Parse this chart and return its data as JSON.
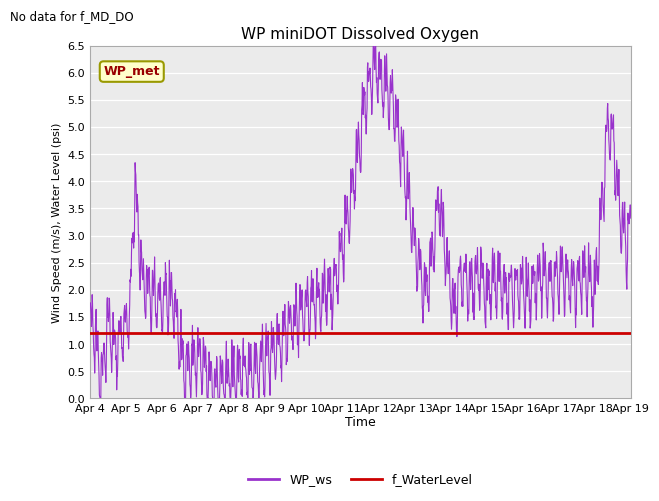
{
  "title": "WP miniDOT Dissolved Oxygen",
  "top_left_text": "No data for f_MD_DO",
  "xlabel": "Time",
  "ylabel": "Wind Speed (m/s), Water Level (psi)",
  "ylim": [
    0.0,
    6.5
  ],
  "yticks": [
    0.0,
    0.5,
    1.0,
    1.5,
    2.0,
    2.5,
    3.0,
    3.5,
    4.0,
    4.5,
    5.0,
    5.5,
    6.0,
    6.5
  ],
  "water_level_value": 1.2,
  "water_level_color": "#cc0000",
  "wp_ws_color": "#9933cc",
  "background_color": "#ffffff",
  "plot_bg_color": "#ebebeb",
  "inset_label": "WP_met",
  "inset_label_bg": "#ffffcc",
  "inset_label_border": "#999900",
  "legend_ws_label": "WP_ws",
  "legend_wl_label": "f_WaterLevel",
  "x_tick_labels": [
    "Apr 4",
    "Apr 5",
    "Apr 6",
    "Apr 7",
    "Apr 8",
    "Apr 9",
    "Apr 10",
    "Apr 11",
    "Apr 12",
    "Apr 13",
    "Apr 14",
    "Apr 15",
    "Apr 16",
    "Apr 17",
    "Apr 18",
    "Apr 19"
  ],
  "num_points": 1500,
  "seed": 42
}
